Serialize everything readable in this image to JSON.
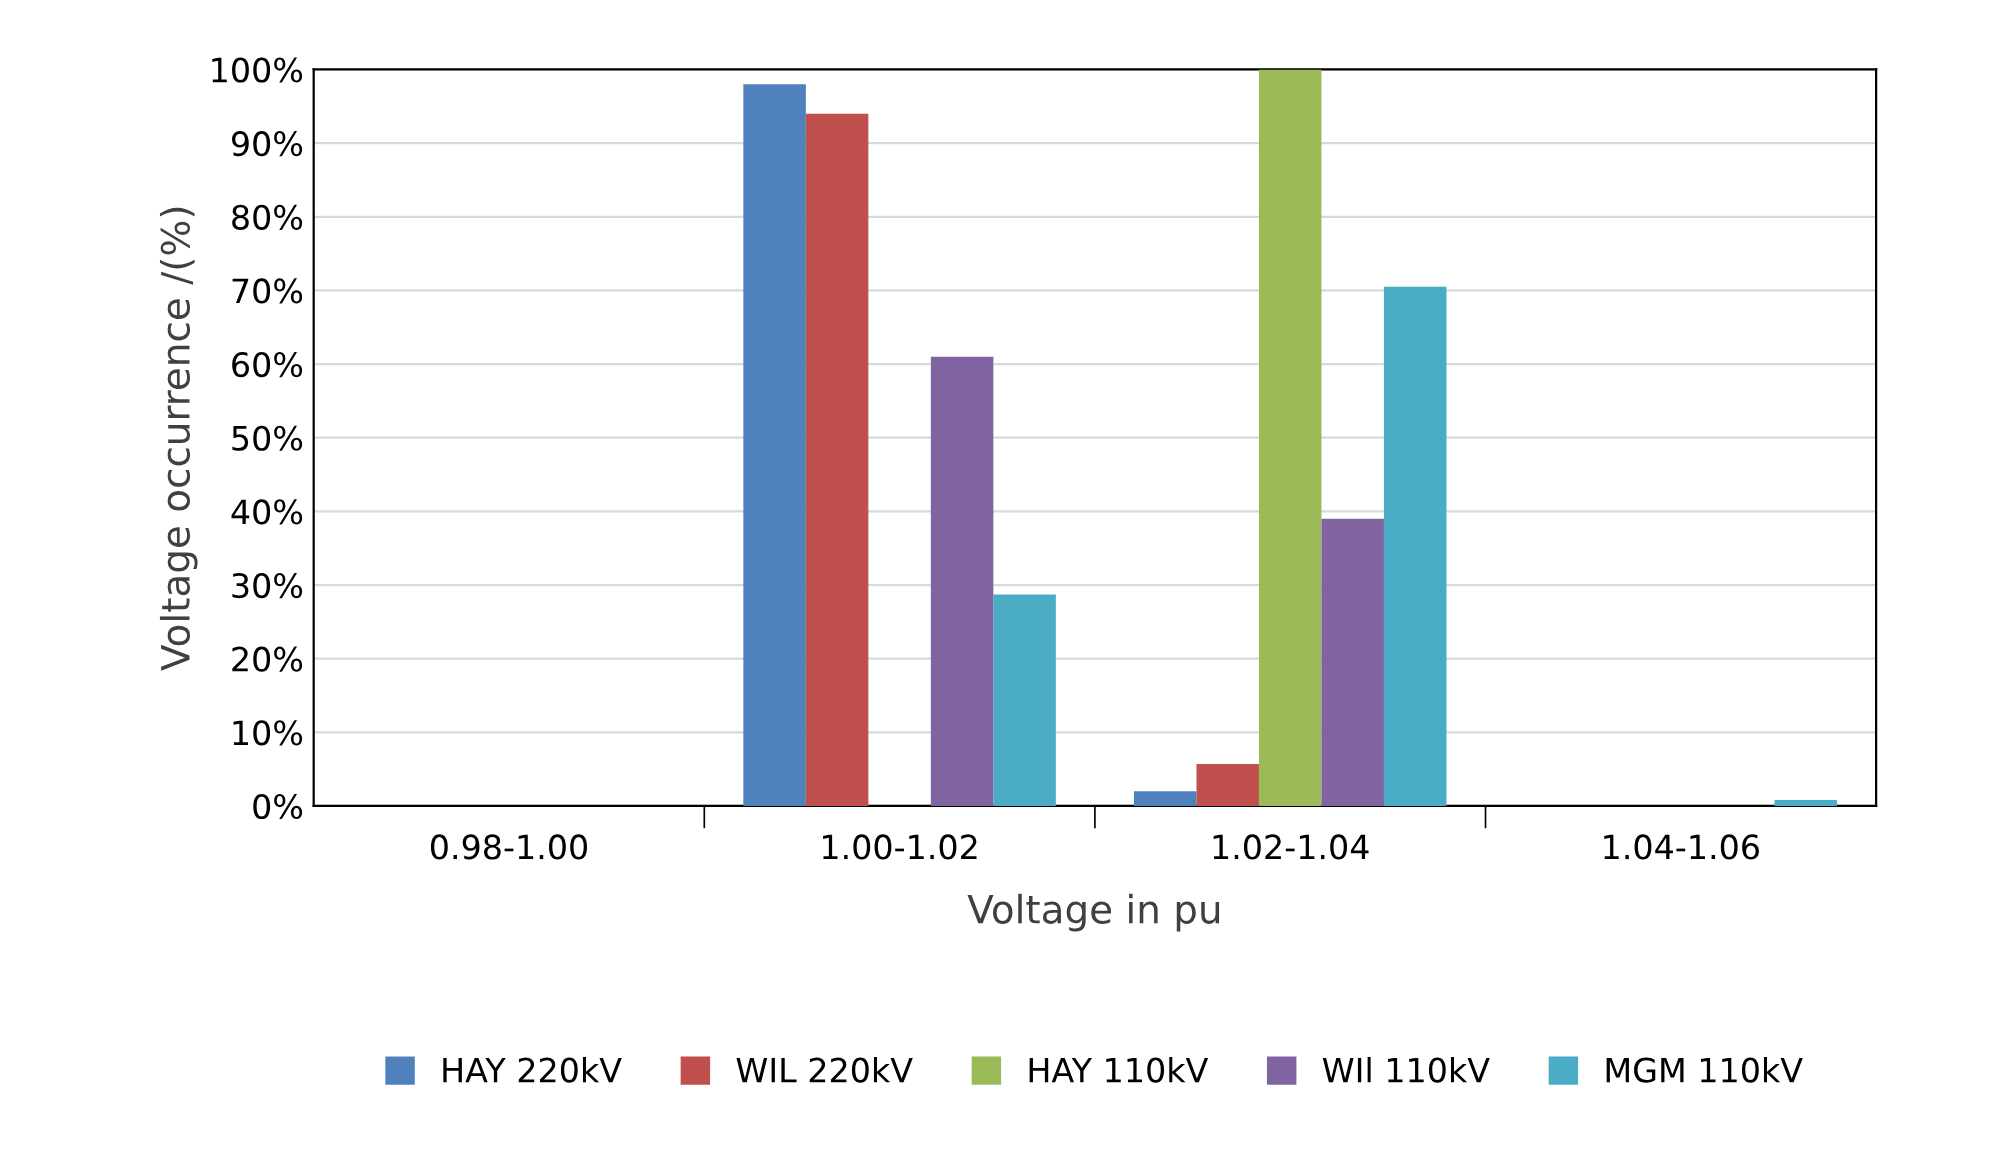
{
  "chart_data": {
    "type": "bar",
    "xlabel": "Voltage in pu",
    "ylabel": "Voltage occurrence /(%)",
    "categories": [
      "0.98-1.00",
      "1.00-1.02",
      "1.02-1.04",
      "1.04-1.06"
    ],
    "series": [
      {
        "name": "HAY 220kV",
        "color": "#4f81bd",
        "values": [
          0,
          98,
          2,
          0
        ]
      },
      {
        "name": "WIL 220kV",
        "color": "#c0504d",
        "values": [
          0,
          94,
          5.7,
          0
        ]
      },
      {
        "name": "HAY 110kV",
        "color": "#9bbb59",
        "values": [
          0,
          0,
          100,
          0
        ]
      },
      {
        "name": "WIl 110kV",
        "color": "#8064a2",
        "values": [
          0,
          61,
          39,
          0
        ]
      },
      {
        "name": "MGM 110kV",
        "color": "#4bacc6",
        "values": [
          0,
          28.7,
          70.5,
          0.8
        ]
      }
    ],
    "ylim": [
      0,
      100
    ],
    "yticks": [
      {
        "value": 0,
        "label": "0%"
      },
      {
        "value": 10,
        "label": "10%"
      },
      {
        "value": 20,
        "label": "20%"
      },
      {
        "value": 30,
        "label": "30%"
      },
      {
        "value": 40,
        "label": "40%"
      },
      {
        "value": 50,
        "label": "50%"
      },
      {
        "value": 60,
        "label": "60%"
      },
      {
        "value": 70,
        "label": "70%"
      },
      {
        "value": 80,
        "label": "80%"
      },
      {
        "value": 90,
        "label": "90%"
      },
      {
        "value": 100,
        "label": "100%"
      }
    ],
    "grid": "y",
    "legend": "bottom"
  }
}
